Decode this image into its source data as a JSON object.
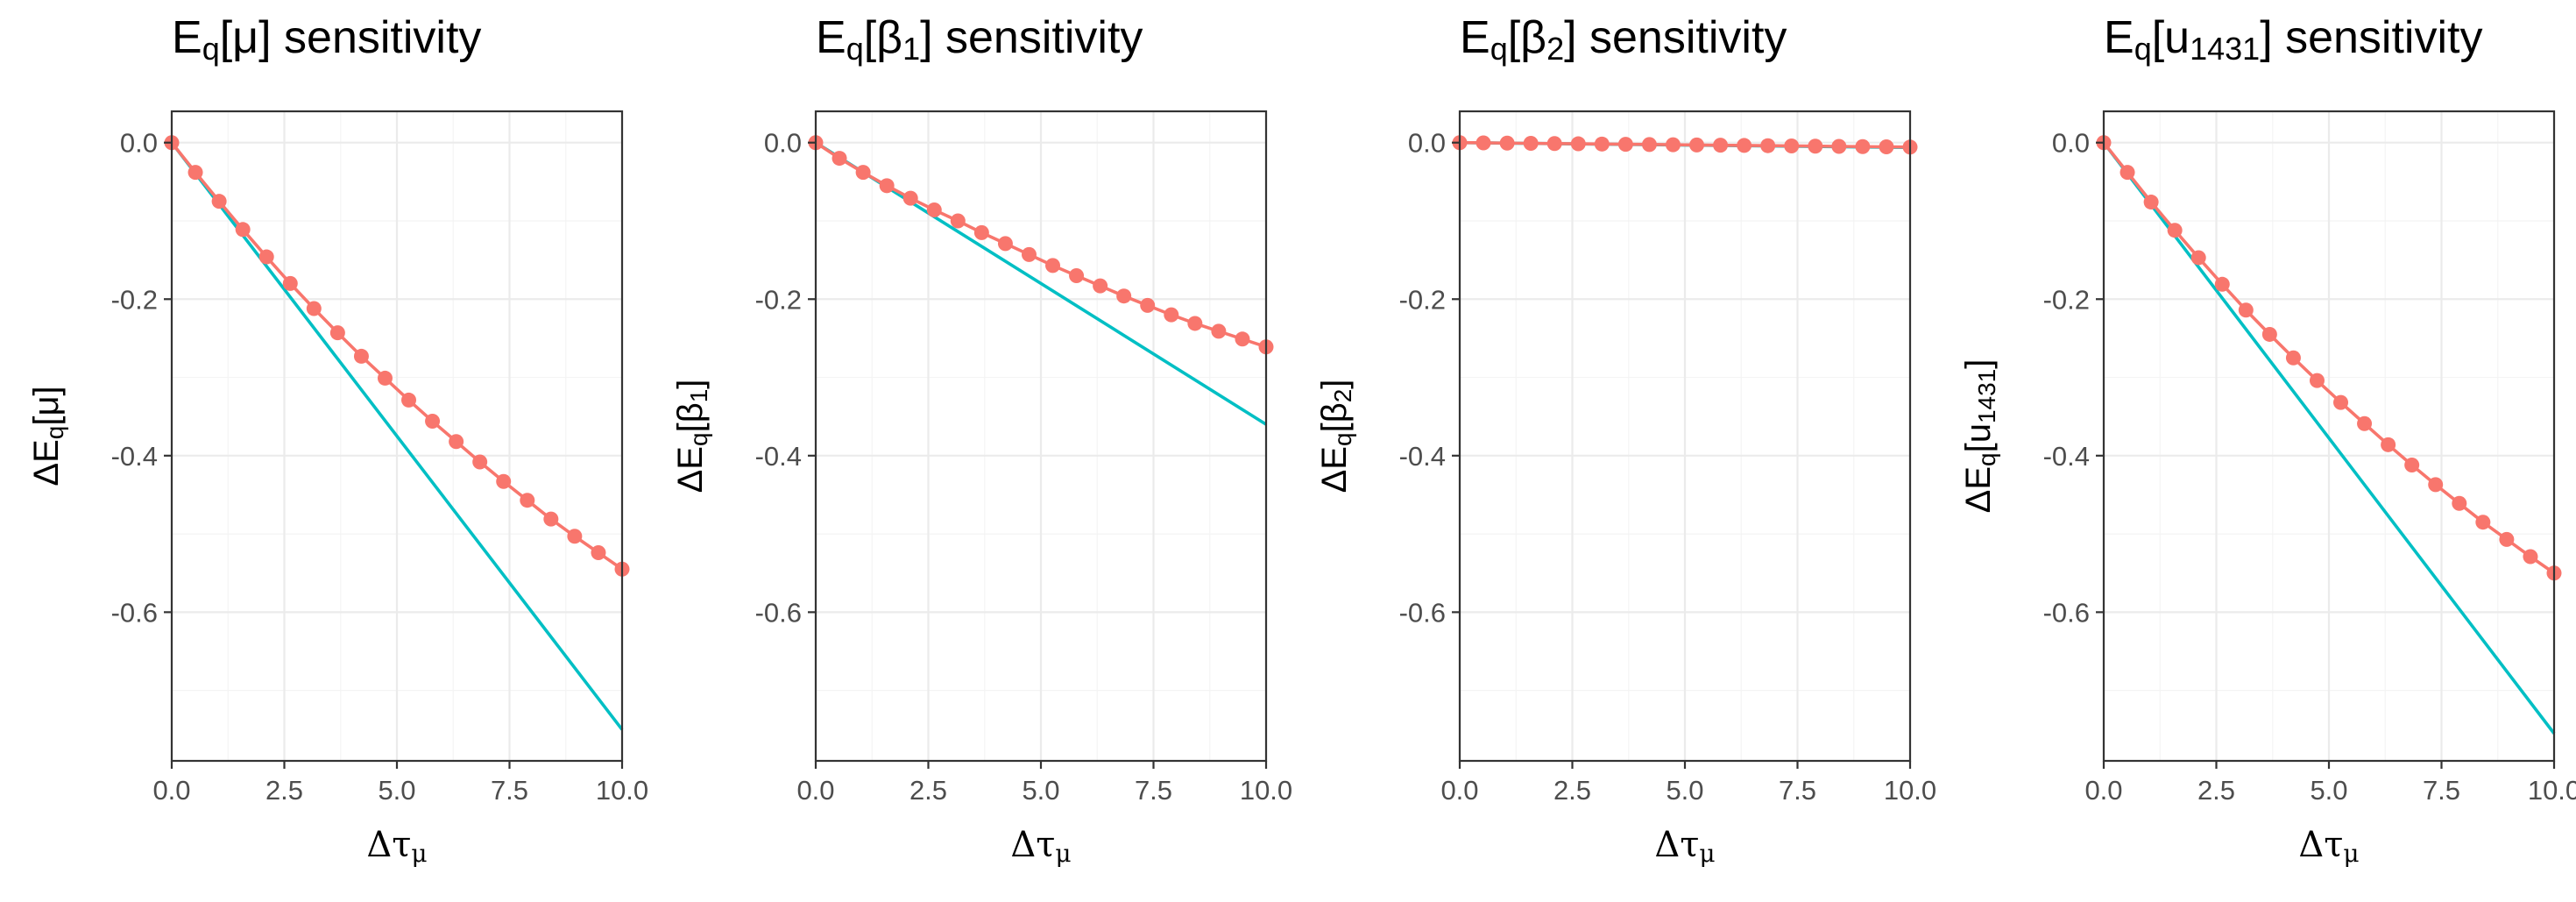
{
  "chart_data": [
    {
      "type": "line",
      "title_parts": {
        "base": "E",
        "sub1": "q",
        "mid": "[μ",
        "sub2": "",
        "tail": "] sensitivity"
      },
      "ylabel_parts": {
        "base": "ΔE",
        "sub1": "q",
        "mid": "[μ",
        "sub2": "",
        "tail": "]"
      },
      "xlabel_parts": {
        "base": "Δτ",
        "sub": "μ"
      },
      "xlim": [
        0,
        10
      ],
      "ylim": [
        -0.79,
        0.04
      ],
      "xticks": [
        0,
        2.5,
        5,
        7.5,
        10
      ],
      "xtick_labels": [
        "0.0",
        "2.5",
        "5.0",
        "7.5",
        "10.0"
      ],
      "yticks": [
        0,
        -0.2,
        -0.4,
        -0.6
      ],
      "ytick_labels": [
        "0.0",
        "-0.2",
        "-0.4",
        "-0.6"
      ],
      "grid": true,
      "series": [
        {
          "color": "#F8766D",
          "markers": true,
          "x": [
            0,
            0.526,
            1.053,
            1.579,
            2.105,
            2.632,
            3.158,
            3.684,
            4.211,
            4.737,
            5.263,
            5.789,
            6.316,
            6.842,
            7.368,
            7.895,
            8.421,
            8.947,
            9.474,
            10
          ],
          "y": [
            0,
            -0.038,
            -0.075,
            -0.111,
            -0.146,
            -0.18,
            -0.212,
            -0.243,
            -0.273,
            -0.301,
            -0.329,
            -0.356,
            -0.382,
            -0.408,
            -0.433,
            -0.457,
            -0.481,
            -0.503,
            -0.524,
            -0.545
          ]
        },
        {
          "color": "#00BFC4",
          "markers": false,
          "x": [
            0,
            10
          ],
          "y": [
            0,
            -0.75
          ]
        }
      ]
    },
    {
      "type": "line",
      "title_parts": {
        "base": "E",
        "sub1": "q",
        "mid": "[β",
        "sub2": "1",
        "tail": "] sensitivity"
      },
      "ylabel_parts": {
        "base": "ΔE",
        "sub1": "q",
        "mid": "[β",
        "sub2": "1",
        "tail": "]"
      },
      "xlabel_parts": {
        "base": "Δτ",
        "sub": "μ"
      },
      "xlim": [
        0,
        10
      ],
      "ylim": [
        -0.79,
        0.04
      ],
      "xticks": [
        0,
        2.5,
        5,
        7.5,
        10
      ],
      "xtick_labels": [
        "0.0",
        "2.5",
        "5.0",
        "7.5",
        "10.0"
      ],
      "yticks": [
        0,
        -0.2,
        -0.4,
        -0.6
      ],
      "ytick_labels": [
        "0.0",
        "-0.2",
        "-0.4",
        "-0.6"
      ],
      "grid": true,
      "series": [
        {
          "color": "#F8766D",
          "markers": true,
          "x": [
            0,
            0.526,
            1.053,
            1.579,
            2.105,
            2.632,
            3.158,
            3.684,
            4.211,
            4.737,
            5.263,
            5.789,
            6.316,
            6.842,
            7.368,
            7.895,
            8.421,
            8.947,
            9.474,
            10
          ],
          "y": [
            0,
            -0.02,
            -0.038,
            -0.055,
            -0.071,
            -0.086,
            -0.1,
            -0.115,
            -0.129,
            -0.143,
            -0.157,
            -0.17,
            -0.183,
            -0.196,
            -0.208,
            -0.22,
            -0.231,
            -0.241,
            -0.251,
            -0.261
          ]
        },
        {
          "color": "#00BFC4",
          "markers": false,
          "x": [
            0,
            10
          ],
          "y": [
            0,
            -0.36
          ]
        }
      ]
    },
    {
      "type": "line",
      "title_parts": {
        "base": "E",
        "sub1": "q",
        "mid": "[β",
        "sub2": "2",
        "tail": "] sensitivity"
      },
      "ylabel_parts": {
        "base": "ΔE",
        "sub1": "q",
        "mid": "[β",
        "sub2": "2",
        "tail": "]"
      },
      "xlabel_parts": {
        "base": "Δτ",
        "sub": "μ"
      },
      "xlim": [
        0,
        10
      ],
      "ylim": [
        -0.79,
        0.04
      ],
      "xticks": [
        0,
        2.5,
        5,
        7.5,
        10
      ],
      "xtick_labels": [
        "0.0",
        "2.5",
        "5.0",
        "7.5",
        "10.0"
      ],
      "yticks": [
        0,
        -0.2,
        -0.4,
        -0.6
      ],
      "ytick_labels": [
        "0.0",
        "-0.2",
        "-0.4",
        "-0.6"
      ],
      "grid": true,
      "series": [
        {
          "color": "#F8766D",
          "markers": true,
          "x": [
            0,
            0.526,
            1.053,
            1.579,
            2.105,
            2.632,
            3.158,
            3.684,
            4.211,
            4.737,
            5.263,
            5.789,
            6.316,
            6.842,
            7.368,
            7.895,
            8.421,
            8.947,
            9.474,
            10
          ],
          "y": [
            0,
            -0.0003,
            -0.0006,
            -0.0009,
            -0.0012,
            -0.0015,
            -0.0018,
            -0.0021,
            -0.0024,
            -0.0027,
            -0.003,
            -0.0033,
            -0.0036,
            -0.0039,
            -0.0042,
            -0.0045,
            -0.0048,
            -0.0051,
            -0.0054,
            -0.0057
          ]
        },
        {
          "color": "#00BFC4",
          "markers": false,
          "x": [
            0,
            10
          ],
          "y": [
            0,
            -0.0062
          ]
        }
      ]
    },
    {
      "type": "line",
      "title_parts": {
        "base": "E",
        "sub1": "q",
        "mid": "[u",
        "sub2": "1431",
        "tail": "] sensitivity"
      },
      "ylabel_parts": {
        "base": "ΔE",
        "sub1": "q",
        "mid": "[u",
        "sub2": "1431",
        "tail": "]"
      },
      "xlabel_parts": {
        "base": "Δτ",
        "sub": "μ"
      },
      "xlim": [
        0,
        10
      ],
      "ylim": [
        -0.79,
        0.04
      ],
      "xticks": [
        0,
        2.5,
        5,
        7.5,
        10
      ],
      "xtick_labels": [
        "0.0",
        "2.5",
        "5.0",
        "7.5",
        "10.0"
      ],
      "yticks": [
        0,
        -0.2,
        -0.4,
        -0.6
      ],
      "ytick_labels": [
        "0.0",
        "-0.2",
        "-0.4",
        "-0.6"
      ],
      "grid": true,
      "series": [
        {
          "color": "#F8766D",
          "markers": true,
          "x": [
            0,
            0.526,
            1.053,
            1.579,
            2.105,
            2.632,
            3.158,
            3.684,
            4.211,
            4.737,
            5.263,
            5.789,
            6.316,
            6.842,
            7.368,
            7.895,
            8.421,
            8.947,
            9.474,
            10
          ],
          "y": [
            0,
            -0.038,
            -0.076,
            -0.112,
            -0.147,
            -0.181,
            -0.214,
            -0.245,
            -0.275,
            -0.304,
            -0.332,
            -0.359,
            -0.386,
            -0.412,
            -0.437,
            -0.461,
            -0.485,
            -0.507,
            -0.529,
            -0.55
          ]
        },
        {
          "color": "#00BFC4",
          "markers": false,
          "x": [
            0,
            10
          ],
          "y": [
            0,
            -0.755
          ]
        }
      ]
    }
  ]
}
